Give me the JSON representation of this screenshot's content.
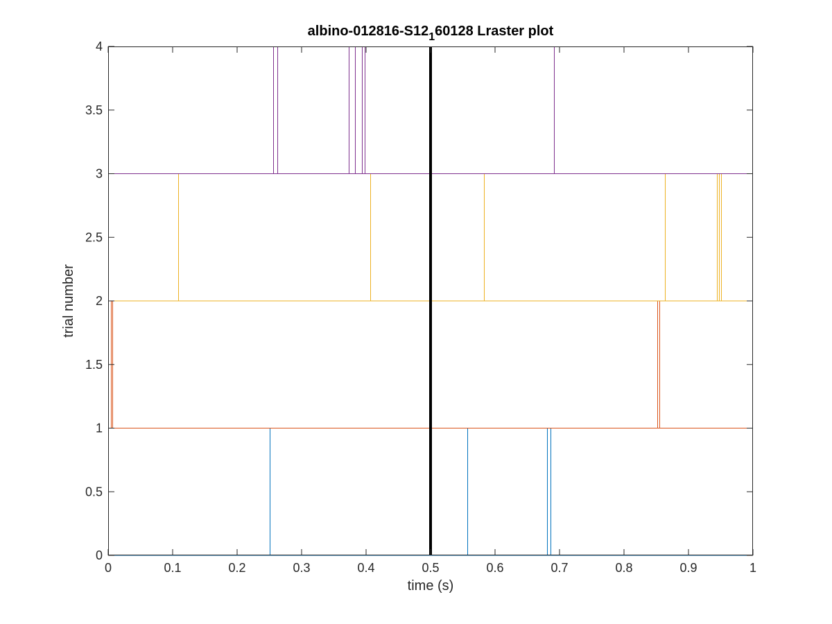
{
  "chart_data": {
    "type": "raster",
    "title": "albino-012816-S12",
    "title_subscript": "1",
    "title_suffix": "60128 Lraster plot",
    "xlabel": "time (s)",
    "ylabel": "trial number",
    "xlim": [
      0,
      1
    ],
    "ylim": [
      0,
      4
    ],
    "xticks": [
      0,
      0.1,
      0.2,
      0.3,
      0.4,
      0.5,
      0.6,
      0.7,
      0.8,
      0.9,
      1
    ],
    "xtick_labels": [
      "0",
      "0.1",
      "0.2",
      "0.3",
      "0.4",
      "0.5",
      "0.6",
      "0.7",
      "0.8",
      "0.9",
      "1"
    ],
    "yticks": [
      0,
      0.5,
      1,
      1.5,
      2,
      2.5,
      3,
      3.5,
      4
    ],
    "ytick_labels": [
      "0",
      "0.5",
      "1",
      "1.5",
      "2",
      "2.5",
      "3",
      "3.5",
      "4"
    ],
    "grid": false,
    "event_marker": {
      "x": 0.5,
      "color": "#000000"
    },
    "series": [
      {
        "trial": 1,
        "baseline": 0,
        "color": "#0072BD",
        "spikes": [
          0.251,
          0.557,
          0.681,
          0.686
        ]
      },
      {
        "trial": 2,
        "baseline": 1,
        "color": "#D95319",
        "spikes": [
          0.004,
          0.006,
          0.852,
          0.855
        ]
      },
      {
        "trial": 3,
        "baseline": 2,
        "color": "#EDB120",
        "spikes": [
          0.109,
          0.406,
          0.583,
          0.863,
          0.944,
          0.947,
          0.951
        ]
      },
      {
        "trial": 4,
        "baseline": 3,
        "color": "#7E2F8E",
        "spikes": [
          0.256,
          0.262,
          0.373,
          0.383,
          0.394,
          0.398,
          0.691
        ]
      }
    ]
  }
}
